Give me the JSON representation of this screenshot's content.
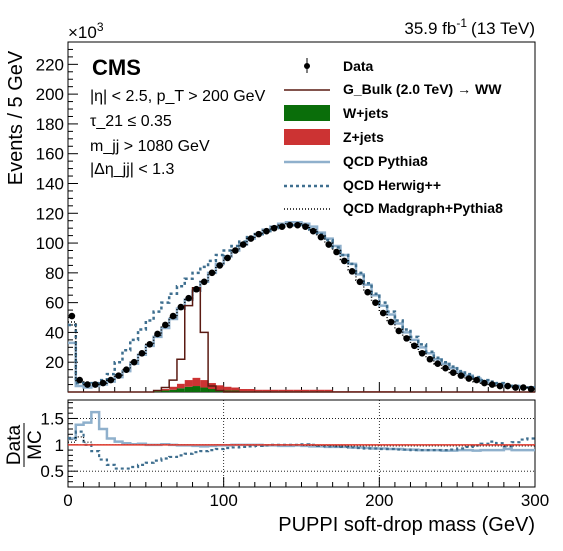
{
  "header": {
    "multiplier_base": "×10",
    "multiplier_exp": "3",
    "lumi_value": "35.9 fb",
    "lumi_exp": "-1",
    "lumi_energy": "(13 TeV)",
    "cms_label": "CMS"
  },
  "cuts": [
    "|η| < 2.5, p_T > 200 GeV",
    "τ_21 ≤ 0.35",
    "m_jj > 1080 GeV",
    "|Δη_jj| < 1.3"
  ],
  "legend": {
    "data": "Data",
    "signal": "G_Bulk (2.0 TeV) → WW",
    "wjets": "W+jets",
    "zjets": "Z+jets",
    "qcd_pythia": "QCD Pythia8",
    "qcd_herwig": "QCD Herwig++",
    "qcd_madgraph": "QCD Madgraph+Pythia8"
  },
  "colors": {
    "data": "#000000",
    "signal": "#5a1a12",
    "wjets": "#0a6e0a",
    "zjets": "#cc3333",
    "qcd_pythia": "#8fb0cc",
    "qcd_herwig": "#3f6f8f",
    "qcd_madgraph": "#000000",
    "ratio_line": "#e23b2e"
  },
  "chart_data": [
    {
      "type": "line",
      "xlabel": "PUPPI soft-drop mass (GeV)",
      "ylabel": "Events / 5 GeV",
      "xlim": [
        0,
        300
      ],
      "ylim": [
        0,
        235
      ],
      "y_multiplier": 1000,
      "xticks": [
        "0",
        "100",
        "200",
        "300"
      ],
      "yticks": [
        "20",
        "40",
        "60",
        "80",
        "100",
        "120",
        "140",
        "160",
        "180",
        "200",
        "220"
      ],
      "bin_width": 5,
      "x": [
        2.5,
        7.5,
        12.5,
        17.5,
        22.5,
        27.5,
        32.5,
        37.5,
        42.5,
        47.5,
        52.5,
        57.5,
        62.5,
        67.5,
        72.5,
        77.5,
        82.5,
        87.5,
        92.5,
        97.5,
        102.5,
        107.5,
        112.5,
        117.5,
        122.5,
        127.5,
        132.5,
        137.5,
        142.5,
        147.5,
        152.5,
        157.5,
        162.5,
        167.5,
        172.5,
        177.5,
        182.5,
        187.5,
        192.5,
        197.5,
        202.5,
        207.5,
        212.5,
        217.5,
        222.5,
        227.5,
        232.5,
        237.5,
        242.5,
        247.5,
        252.5,
        257.5,
        262.5,
        267.5,
        272.5,
        277.5,
        282.5,
        287.5,
        292.5,
        297.5
      ],
      "series": [
        {
          "name": "Data",
          "style": "points",
          "values": [
            51,
            8,
            5,
            5,
            6,
            8,
            11,
            15,
            20,
            26,
            32,
            39,
            45,
            51,
            57,
            63,
            69,
            74,
            80,
            85,
            90,
            95,
            99,
            103,
            106,
            108,
            110,
            111,
            112,
            112,
            111,
            108,
            104,
            99,
            94,
            88,
            81,
            74,
            67,
            60,
            53,
            47,
            41,
            36,
            31,
            26,
            22,
            19,
            16,
            13,
            11,
            9,
            8,
            6,
            5,
            4,
            4,
            3,
            3,
            2
          ]
        },
        {
          "name": "G_Bulk (2.0 TeV) → WW",
          "style": "step",
          "values": [
            0,
            0,
            0,
            0,
            0,
            0,
            0,
            0,
            0,
            0,
            0,
            1,
            3,
            8,
            22,
            58,
            70,
            40,
            4,
            1,
            0,
            0,
            0,
            0,
            0,
            0,
            0,
            0,
            0,
            0,
            0,
            0,
            0,
            0,
            0,
            0,
            0,
            0,
            0,
            0,
            0,
            0,
            0,
            0,
            0,
            0,
            0,
            0,
            0,
            0,
            0,
            0,
            0,
            0,
            0,
            0,
            0,
            0,
            0,
            0
          ]
        },
        {
          "name": "Z+jets",
          "style": "filled",
          "values": [
            0,
            0,
            0,
            0,
            0,
            0,
            0,
            0,
            0,
            0,
            0,
            0.5,
            1,
            2,
            3,
            4.5,
            5.5,
            5,
            4,
            3,
            2.5,
            2,
            1.5,
            1.5,
            1,
            1,
            1,
            1,
            1,
            1,
            1,
            1,
            1,
            1,
            0.5,
            0.5,
            0.5,
            0.5,
            0.5,
            0.5,
            0.5,
            0.5,
            0,
            0,
            0,
            0,
            0,
            0,
            0,
            0,
            0,
            0,
            0,
            0,
            0,
            0,
            0,
            0,
            0,
            0
          ]
        },
        {
          "name": "W+jets",
          "style": "filled",
          "values": [
            0,
            0,
            0,
            0,
            0,
            0,
            0,
            0,
            0,
            0,
            0,
            0.5,
            1,
            1.5,
            2.5,
            3.5,
            4,
            3,
            2,
            1.5,
            1,
            1,
            0.5,
            0.5,
            0.5,
            0.5,
            0.5,
            0.5,
            0.5,
            0.5,
            0.5,
            0.5,
            0.5,
            0.5,
            0,
            0,
            0,
            0,
            0,
            0,
            0,
            0,
            0,
            0,
            0,
            0,
            0,
            0,
            0,
            0,
            0,
            0,
            0,
            0,
            0,
            0,
            0,
            0,
            0,
            0
          ]
        },
        {
          "name": "QCD Pythia8",
          "style": "step",
          "values": [
            33,
            4,
            3,
            4,
            5,
            7,
            10,
            14,
            19,
            25,
            31,
            37,
            43,
            49,
            56,
            62,
            68,
            74,
            80,
            86,
            91,
            95,
            99,
            103,
            106,
            109,
            111,
            113,
            114,
            114,
            113,
            111,
            107,
            103,
            98,
            92,
            86,
            79,
            72,
            65,
            58,
            52,
            46,
            40,
            35,
            30,
            26,
            22,
            19,
            16,
            13,
            11,
            9,
            7,
            6,
            5,
            4,
            4,
            3,
            3
          ]
        },
        {
          "name": "QCD Herwig++",
          "style": "step",
          "values": [
            45,
            6,
            5,
            6,
            8,
            12,
            20,
            28,
            35,
            42,
            48,
            54,
            60,
            66,
            71,
            76,
            80,
            84,
            88,
            92,
            95,
            98,
            101,
            104,
            106,
            108,
            110,
            111,
            112,
            112,
            111,
            109,
            106,
            102,
            97,
            92,
            86,
            80,
            73,
            66,
            60,
            54,
            48,
            42,
            37,
            32,
            27,
            23,
            20,
            17,
            14,
            12,
            10,
            8,
            7,
            6,
            5,
            4,
            4,
            3
          ]
        },
        {
          "name": "QCD Madgraph+Pythia8",
          "style": "step",
          "values": [
            47,
            7,
            5,
            5,
            6,
            8,
            11,
            15,
            20,
            26,
            32,
            38,
            44,
            50,
            56,
            62,
            68,
            74,
            80,
            85,
            90,
            95,
            99,
            103,
            106,
            109,
            111,
            112,
            113,
            113,
            112,
            109,
            105,
            100,
            95,
            89,
            82,
            75,
            68,
            61,
            54,
            48,
            42,
            37,
            32,
            27,
            23,
            19,
            16,
            13,
            11,
            9,
            7,
            6,
            5,
            4,
            4,
            3,
            3,
            2
          ]
        }
      ]
    },
    {
      "type": "line",
      "xlabel": "PUPPI soft-drop mass (GeV)",
      "ylabel": "Data/MC",
      "xlim": [
        0,
        300
      ],
      "ylim": [
        0.2,
        1.85
      ],
      "xticks": [
        "0",
        "100",
        "200",
        "300"
      ],
      "yticks": [
        "0.5",
        "1",
        "1.5"
      ],
      "x": [
        2.5,
        7.5,
        12.5,
        17.5,
        22.5,
        27.5,
        32.5,
        37.5,
        42.5,
        47.5,
        52.5,
        57.5,
        62.5,
        67.5,
        72.5,
        77.5,
        82.5,
        87.5,
        92.5,
        97.5,
        102.5,
        107.5,
        112.5,
        117.5,
        122.5,
        127.5,
        132.5,
        137.5,
        142.5,
        147.5,
        152.5,
        157.5,
        162.5,
        167.5,
        172.5,
        177.5,
        182.5,
        187.5,
        192.5,
        197.5,
        202.5,
        207.5,
        212.5,
        217.5,
        222.5,
        227.5,
        232.5,
        237.5,
        242.5,
        247.5,
        252.5,
        257.5,
        262.5,
        267.5,
        272.5,
        277.5,
        282.5,
        287.5,
        292.5,
        297.5
      ],
      "reference_line": 1.0,
      "series": [
        {
          "name": "QCD Pythia8",
          "style": "step",
          "values": [
            1.12,
            1.38,
            1.42,
            1.62,
            1.3,
            1.12,
            1.06,
            1.03,
            1.01,
            1.02,
            1.0,
            1.0,
            1.01,
            1.0,
            0.99,
            0.99,
            0.98,
            0.97,
            0.98,
            0.99,
            0.99,
            1.0,
            1.0,
            1.0,
            1.0,
            0.99,
            0.99,
            0.98,
            0.98,
            0.99,
            0.98,
            0.97,
            0.97,
            0.96,
            0.96,
            0.96,
            0.95,
            0.95,
            0.94,
            0.93,
            0.93,
            0.92,
            0.92,
            0.91,
            0.91,
            0.9,
            0.9,
            0.9,
            0.89,
            0.89,
            0.9,
            0.9,
            0.89,
            0.9,
            0.9,
            0.9,
            0.92,
            0.9,
            0.9,
            0.9
          ]
        },
        {
          "name": "QCD Herwig++",
          "style": "step",
          "values": [
            1.13,
            1.25,
            1.0,
            0.88,
            0.72,
            0.62,
            0.55,
            0.55,
            0.58,
            0.62,
            0.66,
            0.7,
            0.74,
            0.77,
            0.8,
            0.83,
            0.86,
            0.88,
            0.9,
            0.92,
            0.94,
            0.95,
            0.96,
            0.97,
            0.98,
            0.99,
            1.0,
            1.0,
            1.0,
            1.0,
            1.01,
            1.0,
            0.98,
            0.97,
            0.97,
            0.96,
            0.95,
            0.94,
            0.93,
            0.93,
            0.92,
            0.92,
            0.91,
            0.91,
            0.9,
            0.9,
            0.9,
            0.9,
            0.9,
            0.91,
            0.93,
            0.96,
            0.99,
            1.02,
            1.06,
            1.03,
            0.97,
            1.05,
            1.1,
            1.12
          ]
        },
        {
          "name": "QCD Madgraph+Pythia8",
          "style": "step",
          "values": [
            1.05,
            1.15,
            1.05,
            1.0,
            1.0,
            1.0,
            1.0,
            1.0,
            1.0,
            1.0,
            1.0,
            1.0,
            1.0,
            1.0,
            1.0,
            1.0,
            1.0,
            1.0,
            1.0,
            1.0,
            1.0,
            1.0,
            1.0,
            1.0,
            1.0,
            1.0,
            1.0,
            1.0,
            1.0,
            1.0,
            0.99,
            0.99,
            0.99,
            0.99,
            0.98,
            0.98,
            0.98,
            0.98,
            0.98,
            0.98,
            0.98,
            0.98,
            0.98,
            0.98,
            0.98,
            0.98,
            0.98,
            0.98,
            0.98,
            0.98,
            0.98,
            0.98,
            0.98,
            0.98,
            0.98,
            0.98,
            0.98,
            0.98,
            0.98,
            0.98
          ]
        }
      ]
    }
  ]
}
